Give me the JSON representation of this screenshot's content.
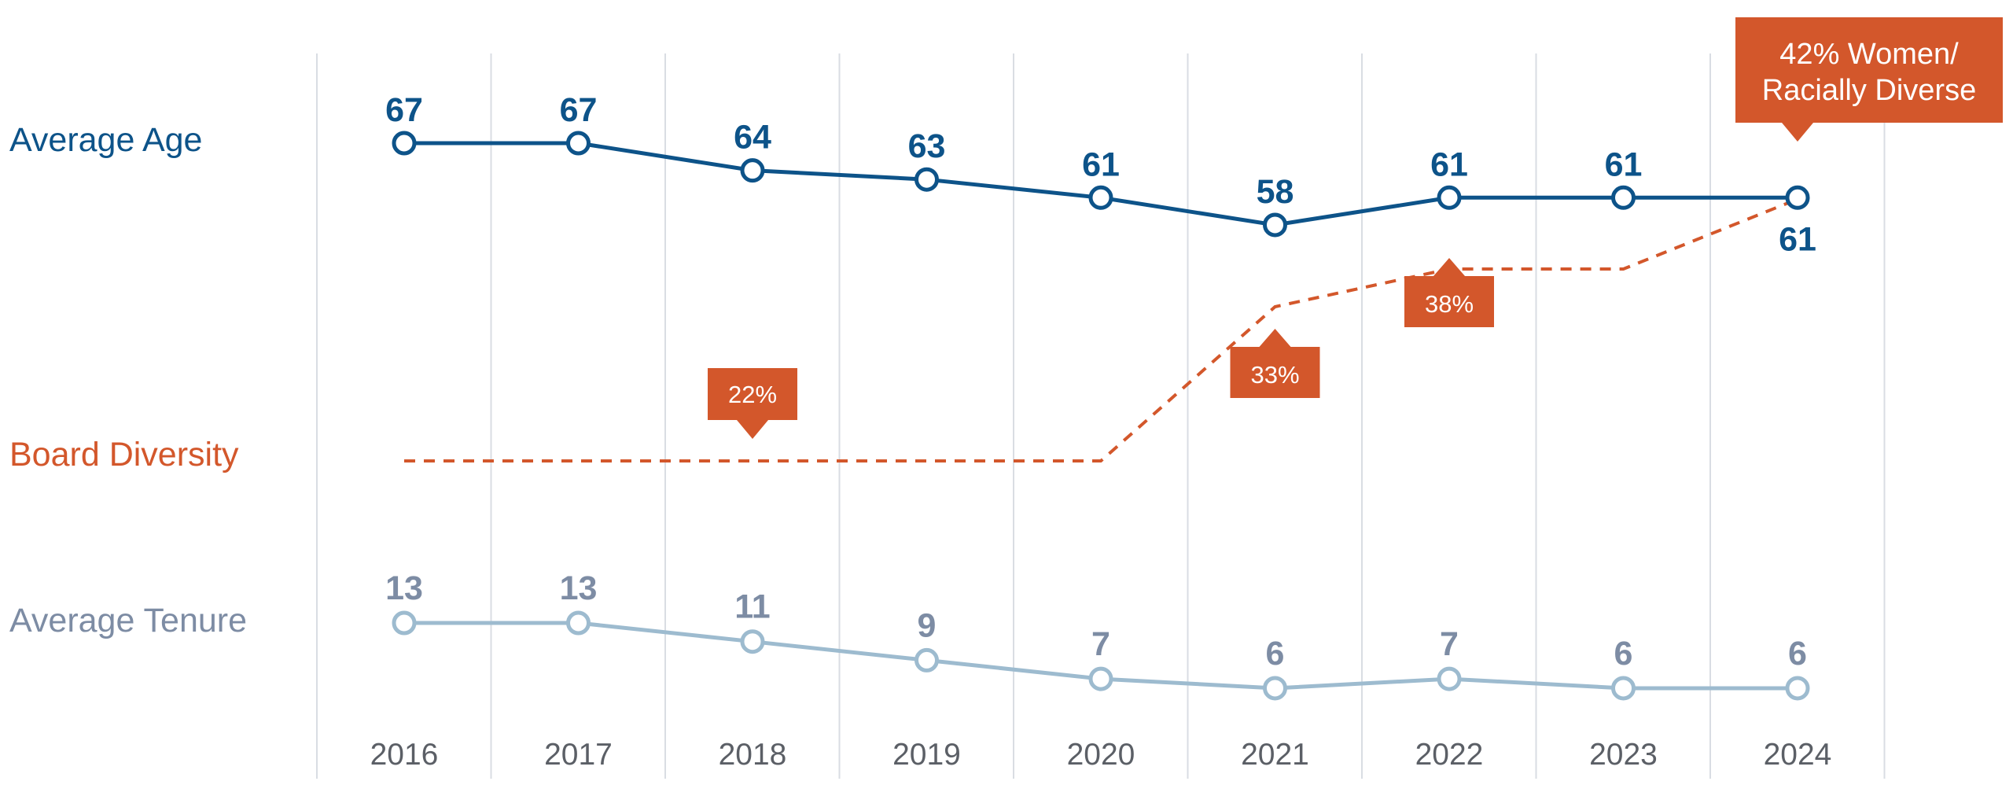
{
  "colors": {
    "age": "#0d5389",
    "diversity": "#d3572b",
    "tenure_line": "#9dbbcf",
    "tenure_label": "#7d8ca4",
    "grid": "#d9dde3",
    "axis_text": "#5b5f66"
  },
  "chart_data": {
    "type": "line",
    "categories": [
      "2016",
      "2017",
      "2018",
      "2019",
      "2020",
      "2021",
      "2022",
      "2023",
      "2024"
    ],
    "series": [
      {
        "name": "Average Age",
        "values": [
          67,
          67,
          64,
          63,
          61,
          58,
          61,
          61,
          61
        ]
      },
      {
        "name": "Board Diversity",
        "values": [
          22,
          22,
          22,
          22,
          22,
          33,
          38,
          38,
          42
        ],
        "unit": "%"
      },
      {
        "name": "Average Tenure",
        "values": [
          13,
          13,
          11,
          9,
          7,
          6,
          7,
          6,
          6
        ]
      }
    ],
    "callouts": [
      {
        "series": "Board Diversity",
        "category": "2018",
        "text": "22%"
      },
      {
        "series": "Board Diversity",
        "category": "2021",
        "text": "33%"
      },
      {
        "series": "Board Diversity",
        "category": "2022",
        "text": "38%"
      },
      {
        "series": "Board Diversity",
        "category": "2024",
        "lines": [
          "42% Women/",
          "Racially Diverse"
        ]
      }
    ],
    "grid": true,
    "legend": "left"
  }
}
